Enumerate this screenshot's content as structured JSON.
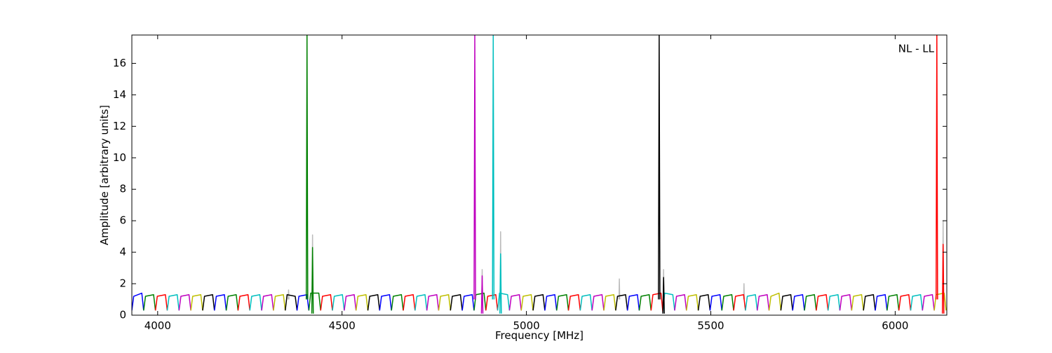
{
  "chart_data": {
    "type": "line",
    "annotation": "NL - LL",
    "xlabel": "Frequency [MHz]",
    "ylabel": "Amplitude [arbitrary units]",
    "xlim": [
      3930,
      6140
    ],
    "ylim": [
      0,
      17.8
    ],
    "xticks": [
      4000,
      4500,
      5000,
      5500,
      6000
    ],
    "yticks": [
      0,
      2,
      4,
      6,
      8,
      10,
      12,
      14,
      16
    ],
    "series": [
      {
        "color": "#bbbbbb",
        "x": [
          4354,
          4355,
          4356
        ],
        "values": [
          1.0,
          1.6,
          1.0
        ]
      },
      {
        "color": "#bbbbbb",
        "x": [
          4419,
          4420,
          4421
        ],
        "values": [
          1.0,
          5.1,
          1.0
        ]
      },
      {
        "color": "#bbbbbb",
        "x": [
          4879,
          4880,
          4881
        ],
        "values": [
          1.0,
          2.9,
          1.0
        ]
      },
      {
        "color": "#bbbbbb",
        "x": [
          4929,
          4930,
          4931
        ],
        "values": [
          1.0,
          5.3,
          1.0
        ]
      },
      {
        "color": "#bbbbbb",
        "x": [
          5251,
          5252,
          5253
        ],
        "values": [
          1.0,
          2.3,
          1.0
        ]
      },
      {
        "color": "#bbbbbb",
        "x": [
          5371,
          5372,
          5373
        ],
        "values": [
          1.0,
          2.9,
          1.0
        ]
      },
      {
        "color": "#bbbbbb",
        "x": [
          5589,
          5590,
          5591
        ],
        "values": [
          1.0,
          2.0,
          1.0
        ]
      },
      {
        "color": "#bbbbbb",
        "x": [
          6129,
          6130,
          6131
        ],
        "values": [
          1.0,
          6.0,
          1.0
        ]
      },
      {
        "color": "#0000ff",
        "x": [
          3930,
          3935,
          3957,
          3962
        ],
        "values": [
          0.3,
          1.2,
          1.4,
          0.3
        ]
      },
      {
        "color": "#008000",
        "x": [
          3962,
          3967,
          3989,
          3994
        ],
        "values": [
          0.3,
          1.2,
          1.3,
          0.3
        ]
      },
      {
        "color": "#ff0000",
        "x": [
          3994,
          3999,
          4021,
          4026
        ],
        "values": [
          0.3,
          1.2,
          1.3,
          0.3
        ]
      },
      {
        "color": "#00bfbf",
        "x": [
          4026,
          4031,
          4053,
          4058
        ],
        "values": [
          0.3,
          1.2,
          1.3,
          0.3
        ]
      },
      {
        "color": "#bf00bf",
        "x": [
          4058,
          4063,
          4085,
          4090
        ],
        "values": [
          0.3,
          1.2,
          1.3,
          0.3
        ]
      },
      {
        "color": "#bfbf00",
        "x": [
          4090,
          4095,
          4117,
          4122
        ],
        "values": [
          0.3,
          1.2,
          1.3,
          0.3
        ]
      },
      {
        "color": "#000000",
        "x": [
          4122,
          4127,
          4149,
          4154
        ],
        "values": [
          0.3,
          1.2,
          1.3,
          0.3
        ]
      },
      {
        "color": "#0000ff",
        "x": [
          4154,
          4159,
          4181,
          4186
        ],
        "values": [
          0.3,
          1.2,
          1.3,
          0.3
        ]
      },
      {
        "color": "#008000",
        "x": [
          4186,
          4191,
          4213,
          4218
        ],
        "values": [
          0.3,
          1.2,
          1.3,
          0.3
        ]
      },
      {
        "color": "#ff0000",
        "x": [
          4218,
          4223,
          4245,
          4250
        ],
        "values": [
          0.3,
          1.2,
          1.3,
          0.3
        ]
      },
      {
        "color": "#00bfbf",
        "x": [
          4250,
          4255,
          4277,
          4282
        ],
        "values": [
          0.3,
          1.2,
          1.3,
          0.3
        ]
      },
      {
        "color": "#bf00bf",
        "x": [
          4282,
          4287,
          4309,
          4314
        ],
        "values": [
          0.3,
          1.2,
          1.3,
          0.3
        ]
      },
      {
        "color": "#bfbf00",
        "x": [
          4314,
          4319,
          4341,
          4346
        ],
        "values": [
          0.3,
          1.2,
          1.3,
          0.3
        ]
      },
      {
        "color": "#000000",
        "x": [
          4346,
          4351,
          4373,
          4378
        ],
        "values": [
          0.3,
          1.3,
          1.2,
          0.3
        ]
      },
      {
        "color": "#0000ff",
        "x": [
          4378,
          4383,
          4405,
          4410
        ],
        "values": [
          0.3,
          1.2,
          1.3,
          0.3
        ]
      },
      {
        "color": "#008000",
        "x": [
          4410,
          4415,
          4437,
          4442
        ],
        "values": [
          0.3,
          1.4,
          1.4,
          0.3
        ]
      },
      {
        "color": "#ff0000",
        "x": [
          4442,
          4447,
          4469,
          4474
        ],
        "values": [
          0.3,
          1.2,
          1.3,
          0.3
        ]
      },
      {
        "color": "#00bfbf",
        "x": [
          4474,
          4479,
          4501,
          4506
        ],
        "values": [
          0.3,
          1.2,
          1.3,
          0.3
        ]
      },
      {
        "color": "#bf00bf",
        "x": [
          4506,
          4511,
          4533,
          4538
        ],
        "values": [
          0.3,
          1.2,
          1.3,
          0.3
        ]
      },
      {
        "color": "#bfbf00",
        "x": [
          4538,
          4543,
          4565,
          4570
        ],
        "values": [
          0.3,
          1.2,
          1.3,
          0.3
        ]
      },
      {
        "color": "#000000",
        "x": [
          4570,
          4575,
          4597,
          4602
        ],
        "values": [
          0.3,
          1.2,
          1.3,
          0.3
        ]
      },
      {
        "color": "#0000ff",
        "x": [
          4602,
          4607,
          4629,
          4634
        ],
        "values": [
          0.3,
          1.2,
          1.3,
          0.3
        ]
      },
      {
        "color": "#008000",
        "x": [
          4634,
          4639,
          4661,
          4666
        ],
        "values": [
          0.3,
          1.2,
          1.3,
          0.3
        ]
      },
      {
        "color": "#ff0000",
        "x": [
          4666,
          4671,
          4693,
          4698
        ],
        "values": [
          0.3,
          1.2,
          1.3,
          0.3
        ]
      },
      {
        "color": "#00bfbf",
        "x": [
          4698,
          4703,
          4725,
          4730
        ],
        "values": [
          0.3,
          1.2,
          1.3,
          0.3
        ]
      },
      {
        "color": "#bf00bf",
        "x": [
          4730,
          4735,
          4757,
          4762
        ],
        "values": [
          0.3,
          1.2,
          1.3,
          0.3
        ]
      },
      {
        "color": "#bfbf00",
        "x": [
          4762,
          4767,
          4789,
          4794
        ],
        "values": [
          0.3,
          1.2,
          1.3,
          0.3
        ]
      },
      {
        "color": "#000000",
        "x": [
          4794,
          4799,
          4821,
          4826
        ],
        "values": [
          0.3,
          1.2,
          1.3,
          0.3
        ]
      },
      {
        "color": "#0000ff",
        "x": [
          4826,
          4831,
          4853,
          4858
        ],
        "values": [
          0.3,
          1.2,
          1.3,
          0.3
        ]
      },
      {
        "color": "#008000",
        "x": [
          4858,
          4863,
          4885,
          4890
        ],
        "values": [
          0.3,
          1.3,
          1.4,
          0.3
        ]
      },
      {
        "color": "#ff0000",
        "x": [
          4890,
          4895,
          4917,
          4922
        ],
        "values": [
          0.3,
          1.2,
          1.3,
          0.3
        ]
      },
      {
        "color": "#00bfbf",
        "x": [
          4922,
          4927,
          4949,
          4954
        ],
        "values": [
          0.3,
          1.4,
          1.3,
          0.3
        ]
      },
      {
        "color": "#bf00bf",
        "x": [
          4954,
          4959,
          4981,
          4986
        ],
        "values": [
          0.3,
          1.2,
          1.3,
          0.3
        ]
      },
      {
        "color": "#bfbf00",
        "x": [
          4986,
          4991,
          5013,
          5018
        ],
        "values": [
          0.3,
          1.2,
          1.3,
          0.3
        ]
      },
      {
        "color": "#000000",
        "x": [
          5018,
          5023,
          5045,
          5050
        ],
        "values": [
          0.3,
          1.2,
          1.3,
          0.3
        ]
      },
      {
        "color": "#0000ff",
        "x": [
          5050,
          5055,
          5077,
          5082
        ],
        "values": [
          0.3,
          1.2,
          1.3,
          0.3
        ]
      },
      {
        "color": "#008000",
        "x": [
          5082,
          5087,
          5109,
          5114
        ],
        "values": [
          0.3,
          1.2,
          1.3,
          0.3
        ]
      },
      {
        "color": "#ff0000",
        "x": [
          5114,
          5119,
          5141,
          5146
        ],
        "values": [
          0.3,
          1.2,
          1.3,
          0.3
        ]
      },
      {
        "color": "#00bfbf",
        "x": [
          5146,
          5151,
          5173,
          5178
        ],
        "values": [
          0.3,
          1.2,
          1.3,
          0.3
        ]
      },
      {
        "color": "#bf00bf",
        "x": [
          5178,
          5183,
          5205,
          5210
        ],
        "values": [
          0.3,
          1.2,
          1.3,
          0.3
        ]
      },
      {
        "color": "#bfbf00",
        "x": [
          5210,
          5215,
          5237,
          5242
        ],
        "values": [
          0.3,
          1.2,
          1.3,
          0.3
        ]
      },
      {
        "color": "#000000",
        "x": [
          5242,
          5247,
          5269,
          5274
        ],
        "values": [
          0.3,
          1.2,
          1.3,
          0.3
        ]
      },
      {
        "color": "#0000ff",
        "x": [
          5274,
          5279,
          5301,
          5306
        ],
        "values": [
          0.3,
          1.2,
          1.3,
          0.3
        ]
      },
      {
        "color": "#008000",
        "x": [
          5306,
          5311,
          5333,
          5338
        ],
        "values": [
          0.3,
          1.2,
          1.3,
          0.3
        ]
      },
      {
        "color": "#ff0000",
        "x": [
          5338,
          5343,
          5365,
          5370
        ],
        "values": [
          0.3,
          1.3,
          1.4,
          0.2
        ]
      },
      {
        "color": "#00bfbf",
        "x": [
          5370,
          5375,
          5397,
          5402
        ],
        "values": [
          0.2,
          1.4,
          1.3,
          0.3
        ]
      },
      {
        "color": "#bf00bf",
        "x": [
          5402,
          5407,
          5429,
          5434
        ],
        "values": [
          0.3,
          1.2,
          1.3,
          0.3
        ]
      },
      {
        "color": "#bfbf00",
        "x": [
          5434,
          5439,
          5461,
          5466
        ],
        "values": [
          0.3,
          1.2,
          1.3,
          0.3
        ]
      },
      {
        "color": "#000000",
        "x": [
          5466,
          5471,
          5493,
          5498
        ],
        "values": [
          0.3,
          1.2,
          1.3,
          0.3
        ]
      },
      {
        "color": "#0000ff",
        "x": [
          5498,
          5503,
          5525,
          5530
        ],
        "values": [
          0.3,
          1.2,
          1.3,
          0.3
        ]
      },
      {
        "color": "#008000",
        "x": [
          5530,
          5535,
          5557,
          5562
        ],
        "values": [
          0.3,
          1.2,
          1.3,
          0.3
        ]
      },
      {
        "color": "#ff0000",
        "x": [
          5562,
          5567,
          5589,
          5594
        ],
        "values": [
          0.3,
          1.2,
          1.3,
          0.3
        ]
      },
      {
        "color": "#00bfbf",
        "x": [
          5594,
          5599,
          5621,
          5626
        ],
        "values": [
          0.3,
          1.2,
          1.3,
          0.3
        ]
      },
      {
        "color": "#bf00bf",
        "x": [
          5626,
          5631,
          5653,
          5658
        ],
        "values": [
          0.3,
          1.2,
          1.3,
          0.3
        ]
      },
      {
        "color": "#bfbf00",
        "x": [
          5658,
          5663,
          5685,
          5690
        ],
        "values": [
          0.3,
          1.2,
          1.4,
          0.3
        ]
      },
      {
        "color": "#000000",
        "x": [
          5690,
          5695,
          5717,
          5722
        ],
        "values": [
          0.3,
          1.2,
          1.3,
          0.3
        ]
      },
      {
        "color": "#0000ff",
        "x": [
          5722,
          5727,
          5749,
          5754
        ],
        "values": [
          0.3,
          1.2,
          1.3,
          0.3
        ]
      },
      {
        "color": "#008000",
        "x": [
          5754,
          5759,
          5781,
          5786
        ],
        "values": [
          0.3,
          1.2,
          1.3,
          0.3
        ]
      },
      {
        "color": "#ff0000",
        "x": [
          5786,
          5791,
          5813,
          5818
        ],
        "values": [
          0.3,
          1.2,
          1.3,
          0.3
        ]
      },
      {
        "color": "#00bfbf",
        "x": [
          5818,
          5823,
          5845,
          5850
        ],
        "values": [
          0.3,
          1.2,
          1.3,
          0.3
        ]
      },
      {
        "color": "#bf00bf",
        "x": [
          5850,
          5855,
          5877,
          5882
        ],
        "values": [
          0.3,
          1.2,
          1.3,
          0.3
        ]
      },
      {
        "color": "#bfbf00",
        "x": [
          5882,
          5887,
          5909,
          5914
        ],
        "values": [
          0.3,
          1.2,
          1.3,
          0.3
        ]
      },
      {
        "color": "#000000",
        "x": [
          5914,
          5919,
          5941,
          5946
        ],
        "values": [
          0.3,
          1.2,
          1.3,
          0.3
        ]
      },
      {
        "color": "#0000ff",
        "x": [
          5946,
          5951,
          5973,
          5978
        ],
        "values": [
          0.3,
          1.2,
          1.3,
          0.3
        ]
      },
      {
        "color": "#008000",
        "x": [
          5978,
          5983,
          6005,
          6010
        ],
        "values": [
          0.3,
          1.2,
          1.3,
          0.3
        ]
      },
      {
        "color": "#ff0000",
        "x": [
          6010,
          6015,
          6037,
          6042
        ],
        "values": [
          0.3,
          1.2,
          1.3,
          0.3
        ]
      },
      {
        "color": "#00bfbf",
        "x": [
          6042,
          6047,
          6069,
          6074
        ],
        "values": [
          0.3,
          1.2,
          1.3,
          0.3
        ]
      },
      {
        "color": "#bf00bf",
        "x": [
          6074,
          6079,
          6101,
          6106
        ],
        "values": [
          0.3,
          1.2,
          1.3,
          0.3
        ]
      },
      {
        "color": "#bfbf00",
        "x": [
          6106,
          6111,
          6133,
          6138
        ],
        "values": [
          0.3,
          1.3,
          1.4,
          0.3
        ]
      },
      {
        "color": "#008000",
        "x": [
          4403,
          4405,
          4407
        ],
        "values": [
          1.0,
          17.8,
          1.0
        ]
      },
      {
        "color": "#008000",
        "x": [
          4418,
          4420,
          4422
        ],
        "values": [
          0.1,
          4.3,
          0.1
        ]
      },
      {
        "color": "#bf00bf",
        "x": [
          4858,
          4860,
          4862
        ],
        "values": [
          1.0,
          17.8,
          1.0
        ]
      },
      {
        "color": "#bf00bf",
        "x": [
          4878,
          4880,
          4882
        ],
        "values": [
          0.1,
          2.5,
          0.1
        ]
      },
      {
        "color": "#00bfbf",
        "x": [
          4908,
          4910,
          4912
        ],
        "values": [
          1.0,
          17.8,
          1.0
        ]
      },
      {
        "color": "#00bfbf",
        "x": [
          4928,
          4930,
          4932
        ],
        "values": [
          0.1,
          3.9,
          0.1
        ]
      },
      {
        "color": "#000000",
        "x": [
          5358,
          5360,
          5362
        ],
        "values": [
          1.0,
          17.8,
          1.0
        ]
      },
      {
        "color": "#000000",
        "x": [
          5370,
          5372,
          5374
        ],
        "values": [
          0.1,
          2.4,
          0.1
        ]
      },
      {
        "color": "#ff0000",
        "x": [
          6111,
          6113,
          6115
        ],
        "values": [
          1.0,
          17.8,
          1.0
        ]
      },
      {
        "color": "#ff0000",
        "x": [
          6128,
          6130,
          6132
        ],
        "values": [
          0.1,
          4.5,
          0.1
        ]
      }
    ]
  }
}
